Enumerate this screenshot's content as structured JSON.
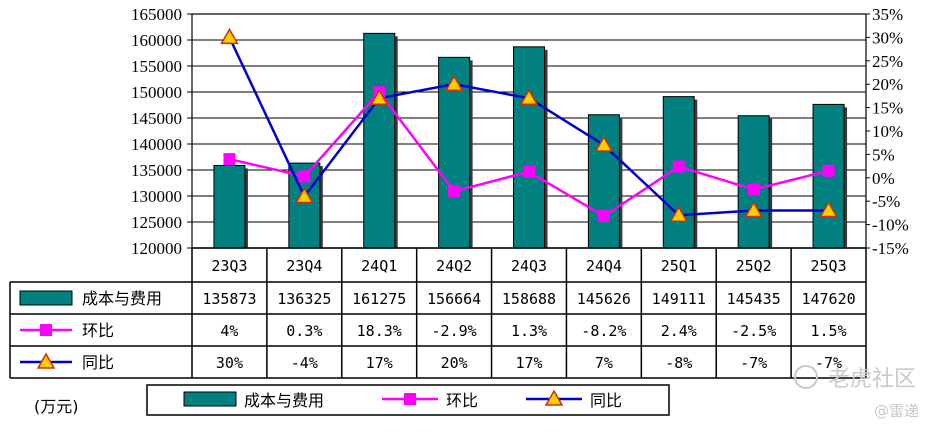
{
  "chart_data": {
    "type": "bar+line",
    "categories": [
      "23Q3",
      "23Q4",
      "24Q1",
      "24Q2",
      "24Q3",
      "24Q4",
      "25Q1",
      "25Q2",
      "25Q3"
    ],
    "series": [
      {
        "name": "成本与费用",
        "type": "bar",
        "axis": "left",
        "color": "#008080",
        "values": [
          135873,
          136325,
          161275,
          156664,
          158688,
          145626,
          149111,
          145435,
          147620
        ],
        "labels": [
          "135873",
          "136325",
          "161275",
          "156664",
          "158688",
          "145626",
          "149111",
          "145435",
          "147620"
        ]
      },
      {
        "name": "环比",
        "type": "line",
        "axis": "right",
        "color": "#ff00ff",
        "marker": "square",
        "values": [
          4,
          0.3,
          18.3,
          -2.9,
          1.3,
          -8.2,
          2.4,
          -2.5,
          1.5
        ],
        "labels": [
          "4%",
          "0.3%",
          "18.3%",
          "-2.9%",
          "1.3%",
          "-8.2%",
          "2.4%",
          "-2.5%",
          "1.5%"
        ]
      },
      {
        "name": "同比",
        "type": "line",
        "axis": "right",
        "color": "#0000cc",
        "marker": "triangle",
        "values": [
          30,
          -4,
          17,
          20,
          17,
          7,
          -8,
          -7,
          -7
        ],
        "labels": [
          "30%",
          "-4%",
          "17%",
          "20%",
          "17%",
          "7%",
          "-8%",
          "-7%",
          "-7%"
        ]
      }
    ],
    "y_left": {
      "min": 120000,
      "max": 165000,
      "step": 5000,
      "ticks": [
        "120000",
        "125000",
        "130000",
        "135000",
        "140000",
        "145000",
        "150000",
        "155000",
        "160000",
        "165000"
      ]
    },
    "y_right": {
      "min": -15,
      "max": 35,
      "step": 5,
      "ticks": [
        "-15%",
        "-10%",
        "-5%",
        "0%",
        "5%",
        "10%",
        "15%",
        "20%",
        "25%",
        "30%",
        "35%"
      ]
    },
    "unit_label": "(万元)",
    "grid": true,
    "legend_position": "bottom"
  },
  "watermark": {
    "text1": "老虎社区",
    "text2": "@雷递"
  }
}
